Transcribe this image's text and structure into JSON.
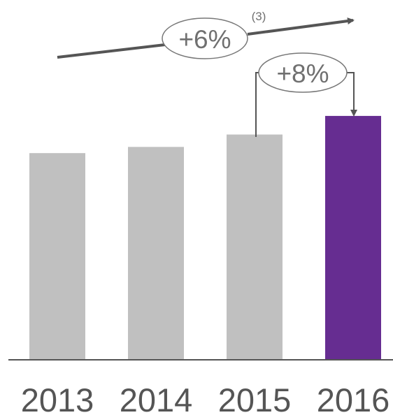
{
  "chart_data": {
    "type": "bar",
    "title": "",
    "xlabel": "",
    "ylabel": "",
    "categories": [
      "2013",
      "2014",
      "2015",
      "2016"
    ],
    "values": [
      100,
      103,
      109,
      118
    ],
    "ylim": [
      0,
      120
    ],
    "grid": false,
    "legend": "none",
    "colors": {
      "default_bar": "#C0C0C0",
      "highlight_bar": "#662D91",
      "annotation": "#555555",
      "axis": "#555555"
    },
    "highlight_category": "2016",
    "annotations": {
      "trend_label": "+6%",
      "trend_footnote": "(3)",
      "yoy_label": "+8%"
    }
  }
}
